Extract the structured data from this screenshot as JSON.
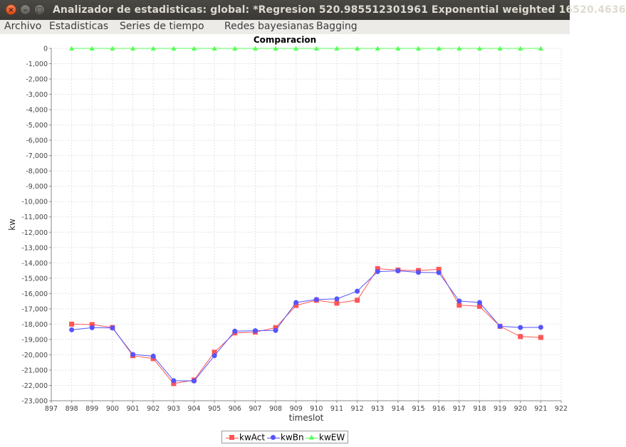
{
  "window": {
    "title": "Analizador de estadisticas: global: *Regresion 520.985512301961 Exponential weighted  16520.4636"
  },
  "menu": [
    {
      "label": "Archivo",
      "name": "menu-archivo"
    },
    {
      "label": "Estadisticas",
      "name": "menu-estadisticas"
    },
    {
      "label": "Series de tiempo",
      "name": "menu-series-de-tiempo"
    },
    {
      "label": "Redes bayesianas",
      "name": "menu-redes-bayesianas"
    },
    {
      "label": "Bagging",
      "name": "menu-bagging"
    }
  ],
  "chart_data": {
    "type": "line",
    "title": "Comparacion",
    "xlabel": "timeslot",
    "ylabel": "kw",
    "xlim": [
      897,
      922
    ],
    "ylim": [
      -23000,
      0
    ],
    "x_ticks": [
      897,
      898,
      899,
      900,
      901,
      902,
      903,
      904,
      905,
      906,
      907,
      908,
      909,
      910,
      911,
      912,
      913,
      914,
      915,
      916,
      917,
      918,
      919,
      920,
      921,
      922
    ],
    "y_ticks": [
      0,
      -1000,
      -2000,
      -3000,
      -4000,
      -5000,
      -6000,
      -7000,
      -8000,
      -9000,
      -10000,
      -11000,
      -12000,
      -13000,
      -14000,
      -15000,
      -16000,
      -17000,
      -18000,
      -19000,
      -20000,
      -21000,
      -22000,
      -23000
    ],
    "y_tick_labels": [
      "0",
      "-1,000",
      "-2,000",
      "-3,000",
      "-4,000",
      "-5,000",
      "-6,000",
      "-7,000",
      "-8,000",
      "-9,000",
      "-10,000",
      "-11,000",
      "-12,000",
      "-13,000",
      "-14,000",
      "-15,000",
      "-16,000",
      "-17,000",
      "-18,000",
      "-19,000",
      "-20,000",
      "-21,000",
      "-22,000",
      "-23,000"
    ],
    "grid": true,
    "legend": "bottom",
    "x": [
      898,
      899,
      900,
      901,
      902,
      903,
      904,
      905,
      906,
      907,
      908,
      909,
      910,
      911,
      912,
      913,
      914,
      915,
      916,
      917,
      918,
      919,
      920,
      921
    ],
    "series": [
      {
        "name": "kwAct",
        "color": "#ff5555",
        "marker": "square",
        "values": [
          -18000,
          -18030,
          -18220,
          -20060,
          -20250,
          -21880,
          -21650,
          -19830,
          -18570,
          -18520,
          -18230,
          -16780,
          -16440,
          -16630,
          -16440,
          -14380,
          -14470,
          -14500,
          -14420,
          -16760,
          -16840,
          -18140,
          -18810,
          -18870
        ]
      },
      {
        "name": "kwBn",
        "color": "#5555ff",
        "marker": "circle",
        "values": [
          -18370,
          -18230,
          -18250,
          -19980,
          -20090,
          -21690,
          -21710,
          -20060,
          -18460,
          -18430,
          -18410,
          -16590,
          -16390,
          -16350,
          -15850,
          -14570,
          -14520,
          -14620,
          -14640,
          -16490,
          -16590,
          -18140,
          -18220,
          -18210
        ]
      },
      {
        "name": "kwEW",
        "color": "#55ff55",
        "marker": "triangle",
        "values": [
          0,
          0,
          0,
          0,
          0,
          0,
          0,
          0,
          0,
          0,
          0,
          0,
          0,
          0,
          0,
          0,
          0,
          0,
          0,
          0,
          0,
          0,
          0,
          0
        ]
      }
    ]
  }
}
